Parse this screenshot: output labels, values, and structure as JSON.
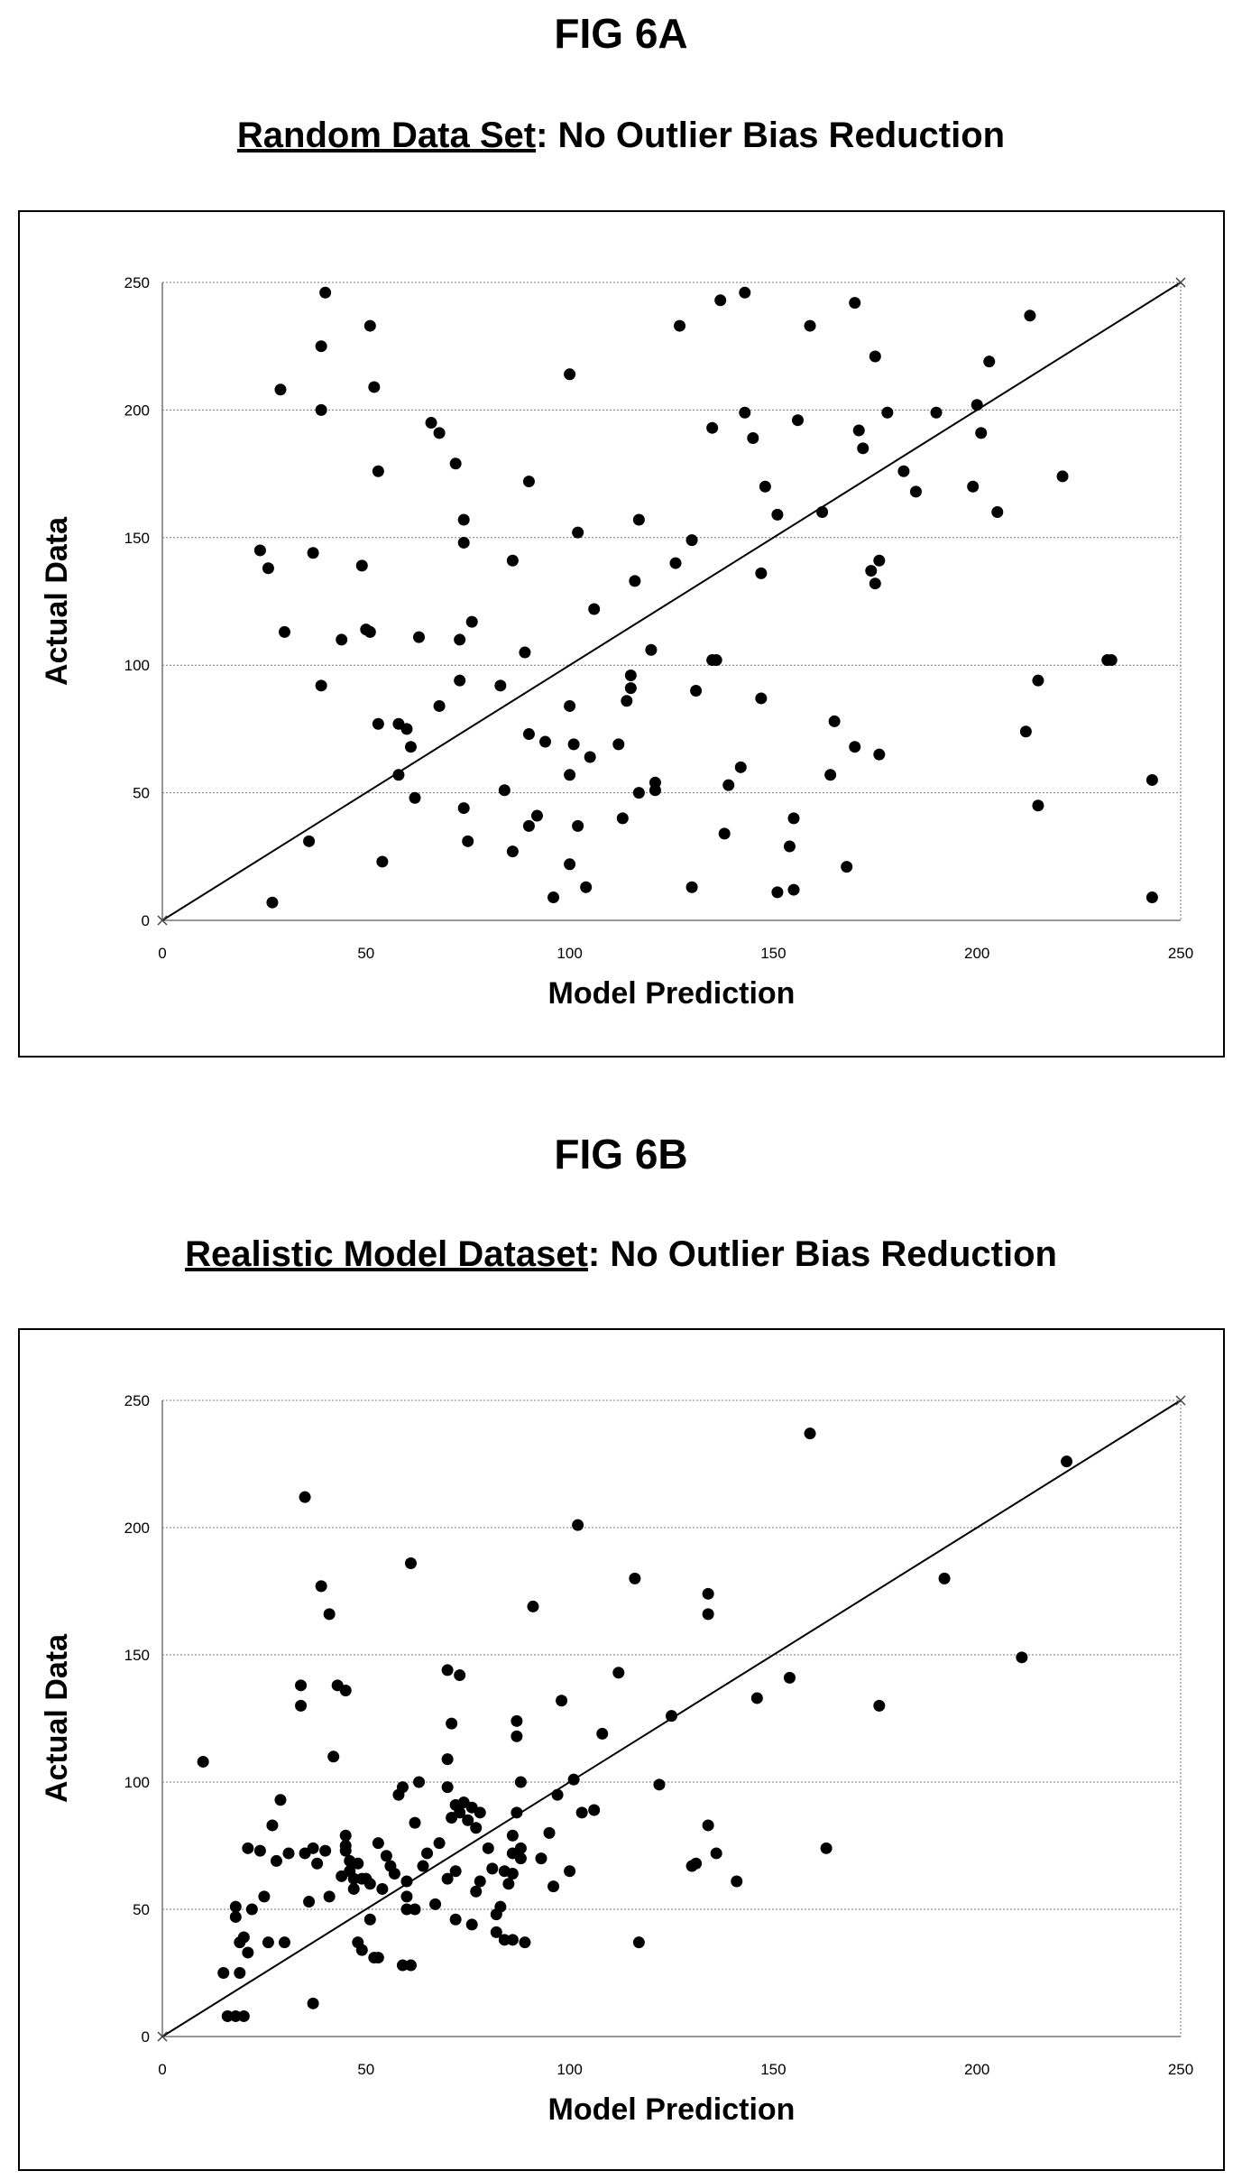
{
  "figA": {
    "label": "FIG 6A",
    "title_main": "Random Data Set",
    "title_rest": ": No Outlier Bias Reduction"
  },
  "figB": {
    "label": "FIG 6B",
    "title_main": "Realistic Model Dataset",
    "title_rest": ": No Outlier Bias Reduction"
  },
  "chart_data": [
    {
      "type": "scatter",
      "title": "Random Data Set: No Outlier Bias Reduction",
      "xlabel": "Model Prediction",
      "ylabel": "Actual Data",
      "xlim": [
        0,
        250
      ],
      "ylim": [
        0,
        250
      ],
      "xticks": [
        "0",
        "50",
        "100",
        "150",
        "200",
        "250"
      ],
      "yticks": [
        "0",
        "50",
        "100",
        "150",
        "200",
        "250"
      ],
      "grid": "horizontal",
      "reference_line": [
        [
          0,
          0
        ],
        [
          250,
          250
        ]
      ],
      "points": [
        [
          27,
          7
        ],
        [
          24,
          145
        ],
        [
          26,
          138
        ],
        [
          30,
          113
        ],
        [
          29,
          208
        ],
        [
          36,
          31
        ],
        [
          37,
          144
        ],
        [
          39,
          200
        ],
        [
          39,
          92
        ],
        [
          39,
          225
        ],
        [
          40,
          246
        ],
        [
          44,
          110
        ],
        [
          49,
          139
        ],
        [
          50,
          114
        ],
        [
          51,
          113
        ],
        [
          51,
          233
        ],
        [
          52,
          209
        ],
        [
          53,
          77
        ],
        [
          53,
          176
        ],
        [
          54,
          23
        ],
        [
          58,
          77
        ],
        [
          58,
          57
        ],
        [
          60,
          75
        ],
        [
          61,
          68
        ],
        [
          62,
          48
        ],
        [
          63,
          111
        ],
        [
          66,
          195
        ],
        [
          68,
          84
        ],
        [
          68,
          191
        ],
        [
          72,
          179
        ],
        [
          73,
          110
        ],
        [
          73,
          94
        ],
        [
          74,
          157
        ],
        [
          74,
          148
        ],
        [
          74,
          44
        ],
        [
          75,
          31
        ],
        [
          76,
          117
        ],
        [
          83,
          92
        ],
        [
          84,
          51
        ],
        [
          86,
          141
        ],
        [
          86,
          27
        ],
        [
          89,
          105
        ],
        [
          90,
          37
        ],
        [
          90,
          172
        ],
        [
          90,
          73
        ],
        [
          92,
          41
        ],
        [
          94,
          70
        ],
        [
          96,
          9
        ],
        [
          100,
          214
        ],
        [
          100,
          84
        ],
        [
          100,
          57
        ],
        [
          100,
          22
        ],
        [
          101,
          69
        ],
        [
          102,
          37
        ],
        [
          102,
          152
        ],
        [
          104,
          13
        ],
        [
          105,
          64
        ],
        [
          106,
          122
        ],
        [
          112,
          69
        ],
        [
          113,
          40
        ],
        [
          114,
          86
        ],
        [
          115,
          91
        ],
        [
          115,
          96
        ],
        [
          116,
          133
        ],
        [
          117,
          157
        ],
        [
          117,
          50
        ],
        [
          120,
          106
        ],
        [
          121,
          51
        ],
        [
          121,
          54
        ],
        [
          126,
          140
        ],
        [
          127,
          233
        ],
        [
          130,
          149
        ],
        [
          130,
          13
        ],
        [
          131,
          90
        ],
        [
          135,
          102
        ],
        [
          135,
          193
        ],
        [
          136,
          102
        ],
        [
          137,
          243
        ],
        [
          138,
          34
        ],
        [
          139,
          53
        ],
        [
          142,
          60
        ],
        [
          143,
          246
        ],
        [
          143,
          199
        ],
        [
          145,
          189
        ],
        [
          147,
          87
        ],
        [
          147,
          136
        ],
        [
          148,
          170
        ],
        [
          151,
          159
        ],
        [
          151,
          11
        ],
        [
          154,
          29
        ],
        [
          155,
          12
        ],
        [
          155,
          40
        ],
        [
          156,
          196
        ],
        [
          159,
          233
        ],
        [
          162,
          160
        ],
        [
          164,
          57
        ],
        [
          165,
          78
        ],
        [
          168,
          21
        ],
        [
          170,
          68
        ],
        [
          170,
          242
        ],
        [
          171,
          192
        ],
        [
          172,
          185
        ],
        [
          174,
          137
        ],
        [
          175,
          221
        ],
        [
          175,
          132
        ],
        [
          176,
          141
        ],
        [
          176,
          65
        ],
        [
          178,
          199
        ],
        [
          182,
          176
        ],
        [
          185,
          168
        ],
        [
          190,
          199
        ],
        [
          199,
          170
        ],
        [
          200,
          202
        ],
        [
          201,
          191
        ],
        [
          203,
          219
        ],
        [
          205,
          160
        ],
        [
          212,
          74
        ],
        [
          213,
          237
        ],
        [
          215,
          45
        ],
        [
          215,
          94
        ],
        [
          221,
          174
        ],
        [
          232,
          102
        ],
        [
          233,
          102
        ],
        [
          243,
          55
        ],
        [
          243,
          9
        ]
      ]
    },
    {
      "type": "scatter",
      "title": "Realistic Model Dataset: No Outlier Bias Reduction",
      "xlabel": "Model Prediction",
      "ylabel": "Actual Data",
      "xlim": [
        0,
        250
      ],
      "ylim": [
        0,
        250
      ],
      "xticks": [
        "0",
        "50",
        "100",
        "150",
        "200",
        "250"
      ],
      "yticks": [
        "0",
        "50",
        "100",
        "150",
        "200",
        "250"
      ],
      "grid": "horizontal",
      "reference_line": [
        [
          0,
          0
        ],
        [
          250,
          250
        ]
      ],
      "points": [
        [
          10,
          108
        ],
        [
          15,
          25
        ],
        [
          16,
          8
        ],
        [
          18,
          8
        ],
        [
          18,
          47
        ],
        [
          18,
          51
        ],
        [
          19,
          37
        ],
        [
          19,
          25
        ],
        [
          20,
          39
        ],
        [
          20,
          8
        ],
        [
          21,
          74
        ],
        [
          21,
          33
        ],
        [
          22,
          50
        ],
        [
          24,
          73
        ],
        [
          25,
          55
        ],
        [
          26,
          37
        ],
        [
          27,
          83
        ],
        [
          28,
          69
        ],
        [
          29,
          93
        ],
        [
          30,
          37
        ],
        [
          31,
          72
        ],
        [
          34,
          130
        ],
        [
          34,
          138
        ],
        [
          35,
          212
        ],
        [
          35,
          72
        ],
        [
          36,
          53
        ],
        [
          37,
          74
        ],
        [
          37,
          13
        ],
        [
          38,
          68
        ],
        [
          39,
          177
        ],
        [
          40,
          73
        ],
        [
          41,
          55
        ],
        [
          41,
          166
        ],
        [
          42,
          110
        ],
        [
          43,
          138
        ],
        [
          44,
          63
        ],
        [
          45,
          73
        ],
        [
          45,
          79
        ],
        [
          45,
          75
        ],
        [
          45,
          136
        ],
        [
          46,
          65
        ],
        [
          46,
          69
        ],
        [
          47,
          62
        ],
        [
          47,
          58
        ],
        [
          48,
          68
        ],
        [
          48,
          37
        ],
        [
          49,
          34
        ],
        [
          49,
          62
        ],
        [
          50,
          62
        ],
        [
          51,
          60
        ],
        [
          51,
          46
        ],
        [
          52,
          31
        ],
        [
          53,
          76
        ],
        [
          53,
          31
        ],
        [
          54,
          58
        ],
        [
          55,
          71
        ],
        [
          56,
          67
        ],
        [
          57,
          64
        ],
        [
          58,
          95
        ],
        [
          59,
          98
        ],
        [
          59,
          28
        ],
        [
          60,
          50
        ],
        [
          60,
          55
        ],
        [
          60,
          61
        ],
        [
          61,
          28
        ],
        [
          61,
          186
        ],
        [
          62,
          50
        ],
        [
          62,
          84
        ],
        [
          63,
          100
        ],
        [
          64,
          67
        ],
        [
          65,
          72
        ],
        [
          67,
          52
        ],
        [
          68,
          76
        ],
        [
          70,
          62
        ],
        [
          70,
          98
        ],
        [
          70,
          109
        ],
        [
          70,
          144
        ],
        [
          71,
          86
        ],
        [
          71,
          123
        ],
        [
          72,
          65
        ],
        [
          72,
          91
        ],
        [
          72,
          46
        ],
        [
          73,
          142
        ],
        [
          73,
          88
        ],
        [
          74,
          92
        ],
        [
          75,
          85
        ],
        [
          76,
          90
        ],
        [
          76,
          44
        ],
        [
          77,
          57
        ],
        [
          77,
          82
        ],
        [
          78,
          88
        ],
        [
          78,
          61
        ],
        [
          80,
          74
        ],
        [
          81,
          66
        ],
        [
          82,
          48
        ],
        [
          82,
          41
        ],
        [
          83,
          51
        ],
        [
          84,
          65
        ],
        [
          84,
          38
        ],
        [
          85,
          60
        ],
        [
          86,
          64
        ],
        [
          86,
          38
        ],
        [
          86,
          79
        ],
        [
          86,
          72
        ],
        [
          87,
          118
        ],
        [
          87,
          124
        ],
        [
          87,
          88
        ],
        [
          88,
          74
        ],
        [
          88,
          100
        ],
        [
          88,
          70
        ],
        [
          89,
          37
        ],
        [
          91,
          169
        ],
        [
          93,
          70
        ],
        [
          95,
          80
        ],
        [
          96,
          59
        ],
        [
          97,
          95
        ],
        [
          98,
          132
        ],
        [
          100,
          65
        ],
        [
          101,
          101
        ],
        [
          102,
          201
        ],
        [
          103,
          88
        ],
        [
          106,
          89
        ],
        [
          108,
          119
        ],
        [
          112,
          143
        ],
        [
          116,
          180
        ],
        [
          117,
          37
        ],
        [
          122,
          99
        ],
        [
          125,
          126
        ],
        [
          130,
          67
        ],
        [
          131,
          68
        ],
        [
          134,
          83
        ],
        [
          134,
          174
        ],
        [
          134,
          166
        ],
        [
          136,
          72
        ],
        [
          141,
          61
        ],
        [
          146,
          133
        ],
        [
          154,
          141
        ],
        [
          159,
          237
        ],
        [
          163,
          74
        ],
        [
          176,
          130
        ],
        [
          192,
          180
        ],
        [
          211,
          149
        ],
        [
          222,
          226
        ]
      ]
    }
  ]
}
